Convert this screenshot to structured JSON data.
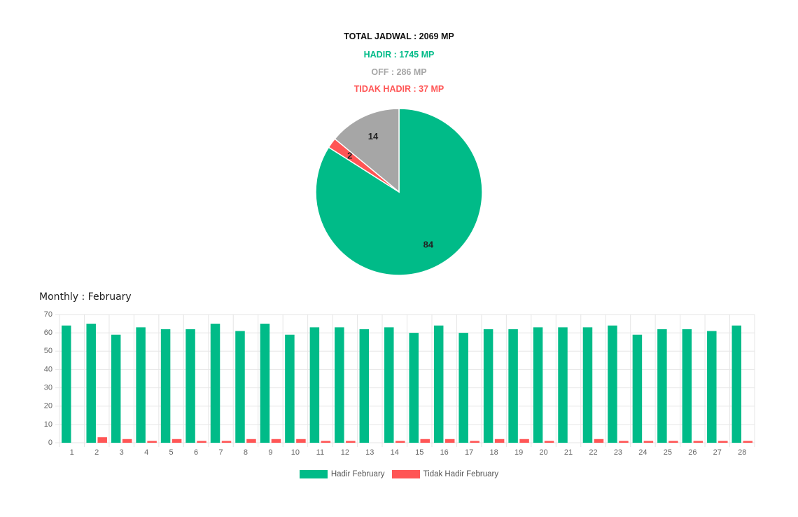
{
  "summary": {
    "total": "TOTAL JADWAL : 2069 MP",
    "hadir": "HADIR : 1745 MP",
    "off": "OFF : 286 MP",
    "tidak_hadir": "TIDAK HADIR : 37 MP"
  },
  "colors": {
    "hadir": "#00bb88",
    "off": "#a6a6a6",
    "tidak_hadir": "#ff5555",
    "total_text": "#111111",
    "grid": "#e6e6e6"
  },
  "chart_data": [
    {
      "type": "pie",
      "slices": [
        {
          "name": "HADIR",
          "value": 84,
          "label": "84",
          "color": "#00bb88"
        },
        {
          "name": "TIDAK HADIR",
          "value": 2,
          "label": "2",
          "color": "#ff5555"
        },
        {
          "name": "OFF",
          "value": 14,
          "label": "14",
          "color": "#a6a6a6"
        }
      ]
    },
    {
      "type": "bar",
      "title": "Monthly : February",
      "categories": [
        "1",
        "2",
        "3",
        "4",
        "5",
        "6",
        "7",
        "8",
        "9",
        "10",
        "11",
        "12",
        "13",
        "14",
        "15",
        "16",
        "17",
        "18",
        "19",
        "20",
        "21",
        "22",
        "23",
        "24",
        "25",
        "26",
        "27",
        "28"
      ],
      "series": [
        {
          "name": "Hadir February",
          "color": "#00bb88",
          "values": [
            64,
            65,
            59,
            63,
            62,
            62,
            65,
            61,
            65,
            59,
            63,
            63,
            62,
            63,
            60,
            64,
            60,
            62,
            62,
            63,
            63,
            63,
            64,
            59,
            62,
            62,
            61,
            64
          ]
        },
        {
          "name": "Tidak Hadir February",
          "color": "#ff5555",
          "values": [
            0,
            3,
            2,
            1,
            2,
            1,
            1,
            2,
            2,
            2,
            1,
            1,
            0,
            1,
            2,
            2,
            1,
            2,
            2,
            1,
            0,
            2,
            1,
            1,
            1,
            1,
            1,
            1
          ]
        }
      ],
      "ylim": [
        0,
        70
      ],
      "yticks": [
        0,
        10,
        20,
        30,
        40,
        50,
        60,
        70
      ],
      "grid": true,
      "legend": "bottom"
    }
  ]
}
